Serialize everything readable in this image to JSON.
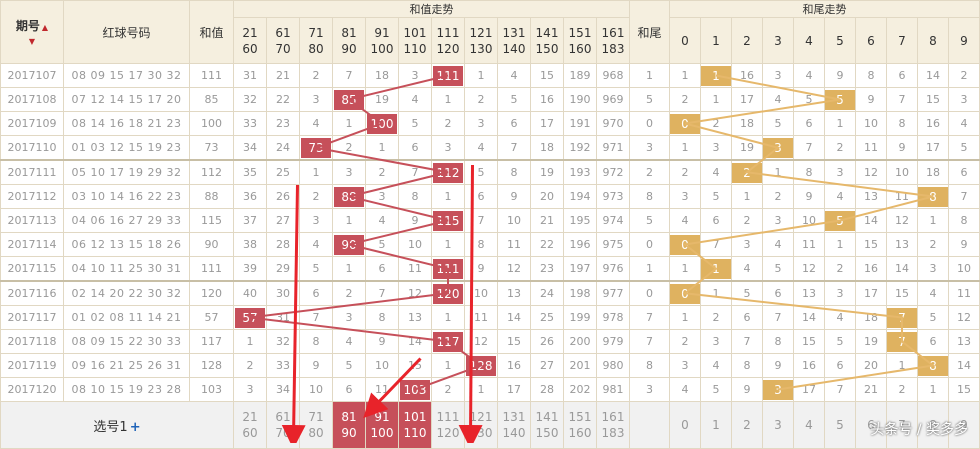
{
  "headers": {
    "issue": "期号",
    "reds": "红球号码",
    "sum": "和值",
    "sum_trend": "和值走势",
    "tail": "和尾",
    "tail_trend": "和尾走势"
  },
  "ranges": [
    {
      "lo": "21",
      "hi": "60"
    },
    {
      "lo": "61",
      "hi": "70"
    },
    {
      "lo": "71",
      "hi": "80"
    },
    {
      "lo": "81",
      "hi": "90"
    },
    {
      "lo": "91",
      "hi": "100"
    },
    {
      "lo": "101",
      "hi": "110"
    },
    {
      "lo": "111",
      "hi": "120"
    },
    {
      "lo": "121",
      "hi": "130"
    },
    {
      "lo": "131",
      "hi": "140"
    },
    {
      "lo": "141",
      "hi": "150"
    },
    {
      "lo": "151",
      "hi": "160"
    },
    {
      "lo": "161",
      "hi": "183"
    }
  ],
  "digits": [
    "0",
    "1",
    "2",
    "3",
    "4",
    "5",
    "6",
    "7",
    "8",
    "9"
  ],
  "rows": [
    {
      "issue": "2017107",
      "reds": "08 09 15 17 30 32",
      "sum": "111",
      "tail": "1",
      "hit": 6,
      "tailHit": 1,
      "cells": [
        "31",
        "21",
        "2",
        "7",
        "18",
        "3",
        "111",
        "1",
        "4",
        "15",
        "189",
        "968"
      ],
      "tails": [
        "1",
        "1",
        "16",
        "3",
        "4",
        "9",
        "8",
        "6",
        "14",
        "2"
      ]
    },
    {
      "issue": "2017108",
      "reds": "07 12 14 15 17 20",
      "sum": "85",
      "tail": "5",
      "hit": 3,
      "tailHit": 5,
      "cells": [
        "32",
        "22",
        "3",
        "85",
        "19",
        "4",
        "1",
        "2",
        "5",
        "16",
        "190",
        "969"
      ],
      "tails": [
        "2",
        "1",
        "17",
        "4",
        "5",
        "5",
        "9",
        "7",
        "15",
        "3"
      ]
    },
    {
      "issue": "2017109",
      "reds": "08 14 16 18 21 23",
      "sum": "100",
      "tail": "0",
      "hit": 4,
      "tailHit": 0,
      "cells": [
        "33",
        "23",
        "4",
        "1",
        "100",
        "5",
        "2",
        "3",
        "6",
        "17",
        "191",
        "970"
      ],
      "tails": [
        "0",
        "2",
        "18",
        "5",
        "6",
        "1",
        "10",
        "8",
        "16",
        "4"
      ]
    },
    {
      "issue": "2017110",
      "reds": "01 03 12 15 19 23",
      "sum": "73",
      "tail": "3",
      "hit": 2,
      "tailHit": 3,
      "cells": [
        "34",
        "24",
        "73",
        "2",
        "1",
        "6",
        "3",
        "4",
        "7",
        "18",
        "192",
        "971"
      ],
      "tails": [
        "1",
        "3",
        "19",
        "3",
        "7",
        "2",
        "11",
        "9",
        "17",
        "5"
      ]
    },
    {
      "issue": "2017111",
      "reds": "05 10 17 19 29 32",
      "sum": "112",
      "tail": "2",
      "hit": 6,
      "tailHit": 2,
      "cells": [
        "35",
        "25",
        "1",
        "3",
        "2",
        "7",
        "112",
        "5",
        "8",
        "19",
        "193",
        "972"
      ],
      "tails": [
        "2",
        "4",
        "2",
        "1",
        "8",
        "3",
        "12",
        "10",
        "18",
        "6"
      ]
    },
    {
      "issue": "2017112",
      "reds": "03 10 14 16 22 23",
      "sum": "88",
      "tail": "8",
      "hit": 3,
      "tailHit": 8,
      "cells": [
        "36",
        "26",
        "2",
        "88",
        "3",
        "8",
        "1",
        "6",
        "9",
        "20",
        "194",
        "973"
      ],
      "tails": [
        "3",
        "5",
        "1",
        "2",
        "9",
        "4",
        "13",
        "11",
        "8",
        "7"
      ]
    },
    {
      "issue": "2017113",
      "reds": "04 06 16 27 29 33",
      "sum": "115",
      "tail": "5",
      "hit": 6,
      "tailHit": 5,
      "cells": [
        "37",
        "27",
        "3",
        "1",
        "4",
        "9",
        "115",
        "7",
        "10",
        "21",
        "195",
        "974"
      ],
      "tails": [
        "4",
        "6",
        "2",
        "3",
        "10",
        "5",
        "14",
        "12",
        "1",
        "8"
      ]
    },
    {
      "issue": "2017114",
      "reds": "06 12 13 15 18 26",
      "sum": "90",
      "tail": "0",
      "hit": 3,
      "tailHit": 0,
      "cells": [
        "38",
        "28",
        "4",
        "90",
        "5",
        "10",
        "1",
        "8",
        "11",
        "22",
        "196",
        "975"
      ],
      "tails": [
        "0",
        "7",
        "3",
        "4",
        "11",
        "1",
        "15",
        "13",
        "2",
        "9"
      ]
    },
    {
      "issue": "2017115",
      "reds": "04 10 11 25 30 31",
      "sum": "111",
      "tail": "1",
      "hit": 6,
      "tailHit": 1,
      "cells": [
        "39",
        "29",
        "5",
        "1",
        "6",
        "11",
        "111",
        "9",
        "12",
        "23",
        "197",
        "976"
      ],
      "tails": [
        "1",
        "1",
        "4",
        "5",
        "12",
        "2",
        "16",
        "14",
        "3",
        "10"
      ]
    },
    {
      "issue": "2017116",
      "reds": "02 14 20 22 30 32",
      "sum": "120",
      "tail": "0",
      "hit": 6,
      "tailHit": 0,
      "cells": [
        "40",
        "30",
        "6",
        "2",
        "7",
        "12",
        "120",
        "10",
        "13",
        "24",
        "198",
        "977"
      ],
      "tails": [
        "0",
        "1",
        "5",
        "6",
        "13",
        "3",
        "17",
        "15",
        "4",
        "11"
      ]
    },
    {
      "issue": "2017117",
      "reds": "01 02 08 11 14 21",
      "sum": "57",
      "tail": "7",
      "hit": 0,
      "tailHit": 7,
      "cells": [
        "57",
        "31",
        "7",
        "3",
        "8",
        "13",
        "1",
        "11",
        "14",
        "25",
        "199",
        "978"
      ],
      "tails": [
        "1",
        "2",
        "6",
        "7",
        "14",
        "4",
        "18",
        "7",
        "5",
        "12"
      ]
    },
    {
      "issue": "2017118",
      "reds": "08 09 15 22 30 33",
      "sum": "117",
      "tail": "7",
      "hit": 6,
      "tailHit": 7,
      "cells": [
        "1",
        "32",
        "8",
        "4",
        "9",
        "14",
        "117",
        "12",
        "15",
        "26",
        "200",
        "979"
      ],
      "tails": [
        "2",
        "3",
        "7",
        "8",
        "15",
        "5",
        "19",
        "7",
        "6",
        "13"
      ]
    },
    {
      "issue": "2017119",
      "reds": "09 16 21 25 26 31",
      "sum": "128",
      "tail": "8",
      "hit": 7,
      "tailHit": 8,
      "cells": [
        "2",
        "33",
        "9",
        "5",
        "10",
        "15",
        "1",
        "128",
        "16",
        "27",
        "201",
        "980"
      ],
      "tails": [
        "3",
        "4",
        "8",
        "9",
        "16",
        "6",
        "20",
        "1",
        "8",
        "14"
      ]
    },
    {
      "issue": "2017120",
      "reds": "08 10 15 19 23 28",
      "sum": "103",
      "tail": "3",
      "hit": 5,
      "tailHit": 3,
      "cells": [
        "3",
        "34",
        "10",
        "6",
        "11",
        "103",
        "2",
        "1",
        "17",
        "28",
        "202",
        "981"
      ],
      "tails": [
        "4",
        "5",
        "9",
        "3",
        "17",
        "7",
        "21",
        "2",
        "1",
        "15"
      ]
    }
  ],
  "footer": {
    "pick_label": "选号1",
    "plus": "+",
    "selected": [
      3,
      4,
      5
    ]
  },
  "watermark": "头条号 / 奖多多",
  "colors": {
    "sum_ball": "#c6505a",
    "tail_ball": "#dfb260",
    "sum_line": "#c6505a",
    "tail_line": "#e6b86b",
    "arrow": "#e8232a"
  }
}
